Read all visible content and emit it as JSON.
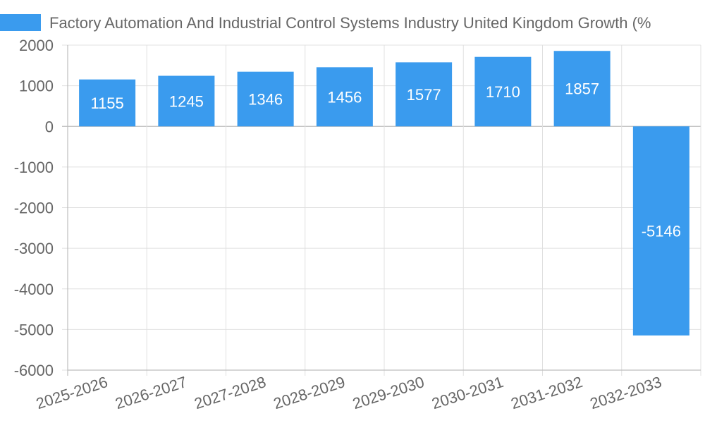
{
  "chart_data": {
    "type": "bar",
    "series": [
      {
        "name": "Factory Automation And Industrial Control Systems Industry United Kingdom Growth (%",
        "color": "#3a9bee",
        "values": [
          1155,
          1245,
          1346,
          1456,
          1577,
          1710,
          1857,
          -5146
        ]
      }
    ],
    "categories": [
      "2025-2026",
      "2026-2027",
      "2027-2028",
      "2028-2029",
      "2029-2030",
      "2030-2031",
      "2031-2032",
      "2032-2033"
    ],
    "ylim": [
      -6000,
      2000
    ],
    "yticks": [
      2000,
      1000,
      0,
      -1000,
      -2000,
      -3000,
      -4000,
      -5000,
      -6000
    ],
    "grid": true,
    "legend": "top-left"
  }
}
